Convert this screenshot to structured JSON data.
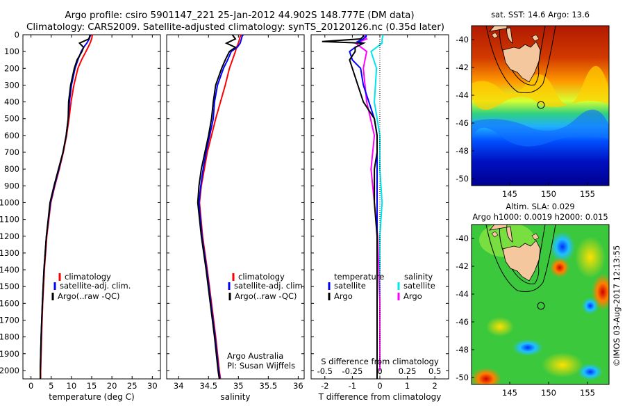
{
  "title_line1": "Argo profile: csiro 5901147_221 25-Jan-2012 44.902S 148.777E (DM data)",
  "title_line2": "Climatology: CARS2009. Satellite-adjusted climatology: synTS_20120126.nc (0.35d later)",
  "colors": {
    "climatology": "#ff0000",
    "satellite": "#0000ff",
    "argo": "#000000",
    "sal_satellite": "#00e5ee",
    "sal_argo": "#ff00ff"
  },
  "depth_axis": {
    "min": 0,
    "max": 2050,
    "ticks": [
      "0",
      "100",
      "200",
      "300",
      "400",
      "500",
      "600",
      "700",
      "800",
      "900",
      "1000",
      "1100",
      "1200",
      "1300",
      "1400",
      "1500",
      "1600",
      "1700",
      "1800",
      "1900",
      "2000"
    ]
  },
  "temp_panel": {
    "xlabel": "temperature (deg C)",
    "xlim": [
      -2,
      32
    ],
    "ticks": [
      "0",
      "5",
      "10",
      "15",
      "20",
      "25",
      "30"
    ],
    "legend": [
      "climatology",
      "satellite-adj. clim.",
      "Argo(..raw -QC)"
    ]
  },
  "sal_panel": {
    "xlabel": "salinity",
    "xlim": [
      33.8,
      36.1
    ],
    "ticks": [
      "34",
      "34.5",
      "35",
      "35.5",
      "36"
    ],
    "legend": [
      "climatology",
      "satellite-adj. clim.",
      "Argo(..raw -QC)"
    ],
    "note1": "Argo Australia",
    "note2": "PI: Susan Wijffels"
  },
  "diff_panel": {
    "xlabel": "T difference from climatology",
    "top_label": "S difference from climatology",
    "xlim": [
      -2.5,
      2.5
    ],
    "t_ticks": [
      "-2",
      "-1",
      "0",
      "1",
      "2"
    ],
    "s_ticks": [
      "-0.5",
      "-0.25",
      "0",
      "0.25",
      "0.5"
    ],
    "legend_t_head": "temperature",
    "legend_s_head": "salinity",
    "legend_t": [
      "satellite",
      "Argo"
    ],
    "legend_s": [
      "satellite",
      "Argo"
    ]
  },
  "map_top": {
    "title": "sat. SST: 14.6  Argo: 13.6",
    "yticks": [
      "-40",
      "-42",
      "-44",
      "-46",
      "-48",
      "-50"
    ],
    "xticks": [
      "145",
      "150",
      "155"
    ]
  },
  "map_bottom": {
    "title1": "Altim. SLA: 0.029",
    "title2": "Argo h1000: 0.0019 h2000: 0.015",
    "yticks": [
      "-40",
      "-42",
      "-44",
      "-46",
      "-48",
      "-50"
    ],
    "xticks": [
      "145",
      "150",
      "155"
    ]
  },
  "credit": "©IMOS 03-Aug-2017 12:13:55",
  "chart_data": {
    "type": "line",
    "profiles": {
      "depth": [
        0,
        10,
        25,
        50,
        75,
        100,
        150,
        200,
        300,
        400,
        500,
        600,
        700,
        800,
        900,
        1000,
        1200,
        1400,
        1600,
        1800,
        2000,
        2050
      ],
      "temperature": {
        "climatology": [
          15.2,
          15.1,
          15.0,
          14.6,
          14.1,
          13.6,
          12.5,
          11.6,
          10.6,
          9.9,
          9.4,
          8.8,
          8.0,
          7.0,
          5.9,
          4.9,
          3.9,
          3.3,
          2.9,
          2.6,
          2.4,
          2.4
        ],
        "satellite": [
          14.7,
          14.6,
          14.4,
          13.8,
          13.0,
          12.4,
          11.6,
          10.9,
          10.0,
          9.5,
          9.2,
          8.7,
          7.9,
          6.9,
          5.8,
          4.8,
          3.8,
          3.2,
          2.8,
          2.5,
          2.3,
          2.3
        ],
        "argo": [
          14.6,
          14.5,
          14.3,
          12.0,
          13.0,
          12.6,
          11.4,
          10.7,
          9.8,
          9.3,
          9.2,
          8.7,
          7.9,
          6.8,
          5.7,
          4.7,
          3.8,
          3.2,
          2.8,
          2.5,
          2.3,
          2.3
        ]
      },
      "salinity": {
        "climatology": [
          35.05,
          35.03,
          35.02,
          35.0,
          34.97,
          34.95,
          34.9,
          34.85,
          34.78,
          34.7,
          34.62,
          34.55,
          34.48,
          34.43,
          34.38,
          34.35,
          34.4,
          34.48,
          34.55,
          34.62,
          34.68,
          34.7
        ],
        "satellite": [
          35.08,
          35.06,
          35.05,
          35.03,
          34.98,
          34.88,
          34.82,
          34.75,
          34.65,
          34.6,
          34.58,
          34.52,
          34.46,
          34.41,
          34.37,
          34.34,
          34.39,
          34.47,
          34.54,
          34.61,
          34.67,
          34.69
        ],
        "argo": [
          34.9,
          34.92,
          34.95,
          34.8,
          34.95,
          34.85,
          34.78,
          34.72,
          34.62,
          34.58,
          34.55,
          34.5,
          34.44,
          34.38,
          34.34,
          34.32,
          34.38,
          34.46,
          34.53,
          34.6,
          34.66,
          34.68
        ]
      }
    },
    "differences_T": {
      "depth": [
        0,
        10,
        25,
        40,
        50,
        75,
        100,
        150,
        200,
        300,
        400,
        500,
        600,
        700,
        800,
        900,
        1000,
        1200,
        1400,
        1600,
        1800,
        2000,
        2050
      ],
      "satellite": [
        -0.5,
        -0.5,
        -0.6,
        -0.8,
        -0.6,
        -0.9,
        -1.1,
        -1.0,
        -0.7,
        -0.6,
        -0.4,
        -0.2,
        -0.1,
        -0.1,
        -0.1,
        -0.1,
        -0.1,
        -0.1,
        -0.1,
        -0.1,
        -0.1,
        -0.1,
        -0.1
      ],
      "argo": [
        -0.6,
        -0.6,
        -0.7,
        -2.1,
        -0.6,
        -0.9,
        -0.9,
        -1.1,
        -1.0,
        -0.8,
        -0.6,
        -0.2,
        -0.1,
        -0.1,
        -0.2,
        -0.2,
        -0.2,
        -0.1,
        -0.1,
        -0.1,
        -0.1,
        -0.1,
        -0.1
      ]
    },
    "differences_S": {
      "depth": [
        0,
        25,
        50,
        100,
        200,
        400,
        600,
        800,
        1000,
        1200,
        1400,
        1600,
        1800,
        2000
      ],
      "satellite": [
        0.03,
        0.02,
        0.02,
        -0.08,
        -0.03,
        -0.05,
        0.0,
        0.0,
        0.02,
        0.0,
        0.0,
        0.0,
        0.0,
        0.0
      ],
      "argo": [
        -0.15,
        -0.12,
        -0.22,
        -0.12,
        -0.15,
        -0.12,
        -0.05,
        -0.08,
        -0.05,
        -0.02,
        -0.01,
        0.0,
        0.0,
        0.0
      ]
    }
  }
}
